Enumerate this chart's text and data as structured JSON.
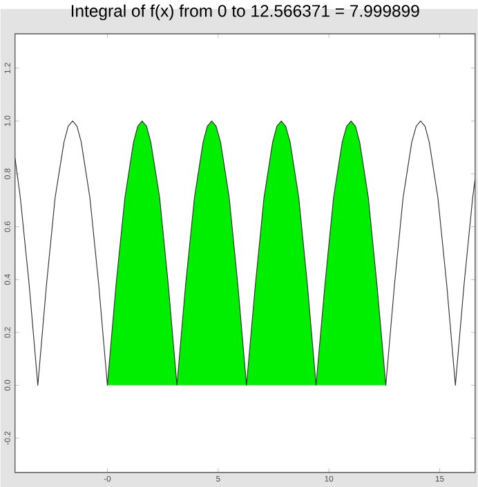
{
  "chart_data": {
    "type": "line",
    "title": "Integral of f(x) from 0 to 12.566371 = 7.999899",
    "xlim": [
      -4.17,
      16.6
    ],
    "ylim": [
      -0.33,
      1.33
    ],
    "xticks": [
      {
        "value": 0,
        "label": "-0"
      },
      5,
      10,
      15
    ],
    "yticks": [
      {
        "value": -0.2,
        "label": "-0.2"
      },
      {
        "value": 0,
        "label": "0.0"
      },
      {
        "value": 0.2,
        "label": "0.2"
      },
      {
        "value": 0.4,
        "label": "0.4"
      },
      {
        "value": 0.6,
        "label": "0.6"
      },
      {
        "value": 0.8,
        "label": "0.8"
      },
      {
        "value": 1,
        "label": "1.0"
      },
      {
        "value": 1.2,
        "label": "1.2"
      }
    ],
    "series": [
      {
        "type": "area",
        "color": "#00ee00",
        "x": [
          0,
          0.39,
          0.79,
          1.18,
          1.37,
          1.57,
          1.77,
          1.96,
          2.36,
          2.75,
          3.14,
          3.53,
          3.93,
          4.32,
          4.51,
          4.71,
          4.91,
          5.11,
          5.5,
          5.89,
          6.28,
          6.68,
          7.07,
          7.46,
          7.65,
          7.85,
          8.05,
          8.25,
          8.64,
          9.03,
          9.42,
          9.82,
          10.21,
          10.6,
          10.8,
          11.0,
          11.2,
          11.39,
          11.78,
          12.17,
          12.57
        ],
        "values": [
          0,
          0.38,
          0.71,
          0.92,
          0.98,
          1,
          0.98,
          0.92,
          0.71,
          0.38,
          0,
          0.38,
          0.71,
          0.92,
          0.98,
          1,
          0.98,
          0.92,
          0.71,
          0.38,
          0,
          0.38,
          0.71,
          0.92,
          0.98,
          1,
          0.98,
          0.92,
          0.71,
          0.38,
          0,
          0.38,
          0.71,
          0.92,
          0.98,
          1,
          0.98,
          0.92,
          0.71,
          0.38,
          0
        ]
      },
      {
        "color": "#333333",
        "x": [
          -4.17,
          -3.93,
          -3.53,
          -3.14,
          -2.75,
          -2.36,
          -1.96,
          -1.77,
          -1.57,
          -1.37,
          -1.18,
          -0.79,
          -0.39,
          0,
          0.39,
          0.79,
          1.18,
          1.37,
          1.57,
          1.77,
          1.96,
          2.36,
          2.75,
          3.14,
          3.53,
          3.93,
          4.32,
          4.51,
          4.71,
          4.91,
          5.11,
          5.5,
          5.89,
          6.28,
          6.68,
          7.07,
          7.46,
          7.65,
          7.85,
          8.05,
          8.25,
          8.64,
          9.03,
          9.42,
          9.82,
          10.21,
          10.6,
          10.8,
          11.0,
          11.2,
          11.39,
          11.78,
          12.17,
          12.57,
          12.96,
          13.35,
          13.74,
          13.94,
          14.14,
          14.34,
          14.53,
          14.92,
          15.32,
          15.71,
          16.1,
          16.49,
          16.6
        ],
        "values": [
          0.86,
          0.71,
          0.38,
          0,
          0.38,
          0.71,
          0.92,
          0.98,
          1,
          0.98,
          0.92,
          0.71,
          0.38,
          0,
          0.38,
          0.71,
          0.92,
          0.98,
          1,
          0.98,
          0.92,
          0.71,
          0.38,
          0,
          0.38,
          0.71,
          0.92,
          0.98,
          1,
          0.98,
          0.92,
          0.71,
          0.38,
          0,
          0.38,
          0.71,
          0.92,
          0.98,
          1,
          0.98,
          0.92,
          0.71,
          0.38,
          0,
          0.38,
          0.71,
          0.92,
          0.98,
          1,
          0.98,
          0.92,
          0.71,
          0.38,
          0,
          0.38,
          0.71,
          0.92,
          0.98,
          1,
          0.98,
          0.92,
          0.71,
          0.38,
          0,
          0.38,
          0.71,
          0.78
        ]
      }
    ]
  }
}
